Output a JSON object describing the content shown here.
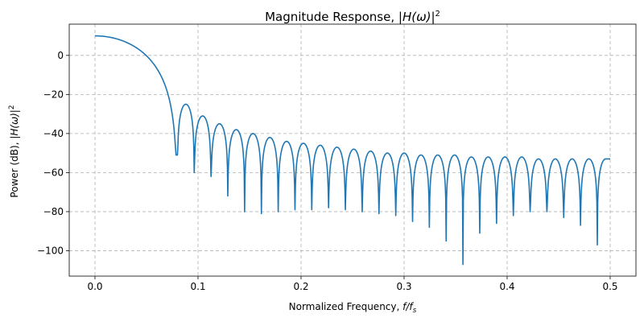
{
  "chart_data": {
    "type": "line",
    "title_main": "Magnitude Response, |",
    "title_italic": "H(ω)",
    "title_tail": "|",
    "title_sup": "2",
    "xlabel_main": "Normalized Frequency, ",
    "xlabel_italic": "f/f",
    "xlabel_sub": "s",
    "ylabel_main": "Power (dB), |",
    "ylabel_italic": "H(ω)",
    "ylabel_tail": "|",
    "ylabel_sup": "2",
    "xlim": [
      -0.025,
      0.525
    ],
    "ylim": [
      -113,
      16
    ],
    "xticks": [
      0.0,
      0.1,
      0.2,
      0.3,
      0.4,
      0.5
    ],
    "xtick_labels": [
      "0.0",
      "0.1",
      "0.2",
      "0.3",
      "0.4",
      "0.5"
    ],
    "yticks": [
      0,
      -20,
      -40,
      -60,
      -80,
      -100
    ],
    "ytick_labels": [
      "0",
      "−20",
      "−40",
      "−60",
      "−80",
      "−100"
    ],
    "grid": true,
    "series": [
      {
        "name": "power_db",
        "color": "#1f77b4",
        "passband_db": 10,
        "mainlobe_edge": 0.08,
        "null_spacing": 0.0163,
        "null_count": 26,
        "sidelobe_peaks_db": [
          -25,
          -31,
          -35,
          -38,
          -40,
          -42,
          -44,
          -45,
          -46,
          -47,
          -48,
          -49,
          -50,
          -50,
          -51,
          -51,
          -51,
          -52,
          -52,
          -52,
          -52,
          -53,
          -53,
          -53,
          -53
        ],
        "null_depths_db": [
          -51,
          -60,
          -62,
          -72,
          -80,
          -81,
          -80,
          -79,
          -79,
          -78,
          -79,
          -80,
          -81,
          -82,
          -85,
          -88,
          -95,
          -107,
          -91,
          -86,
          -82,
          -80,
          -80,
          -83,
          -87,
          -97
        ]
      }
    ]
  }
}
